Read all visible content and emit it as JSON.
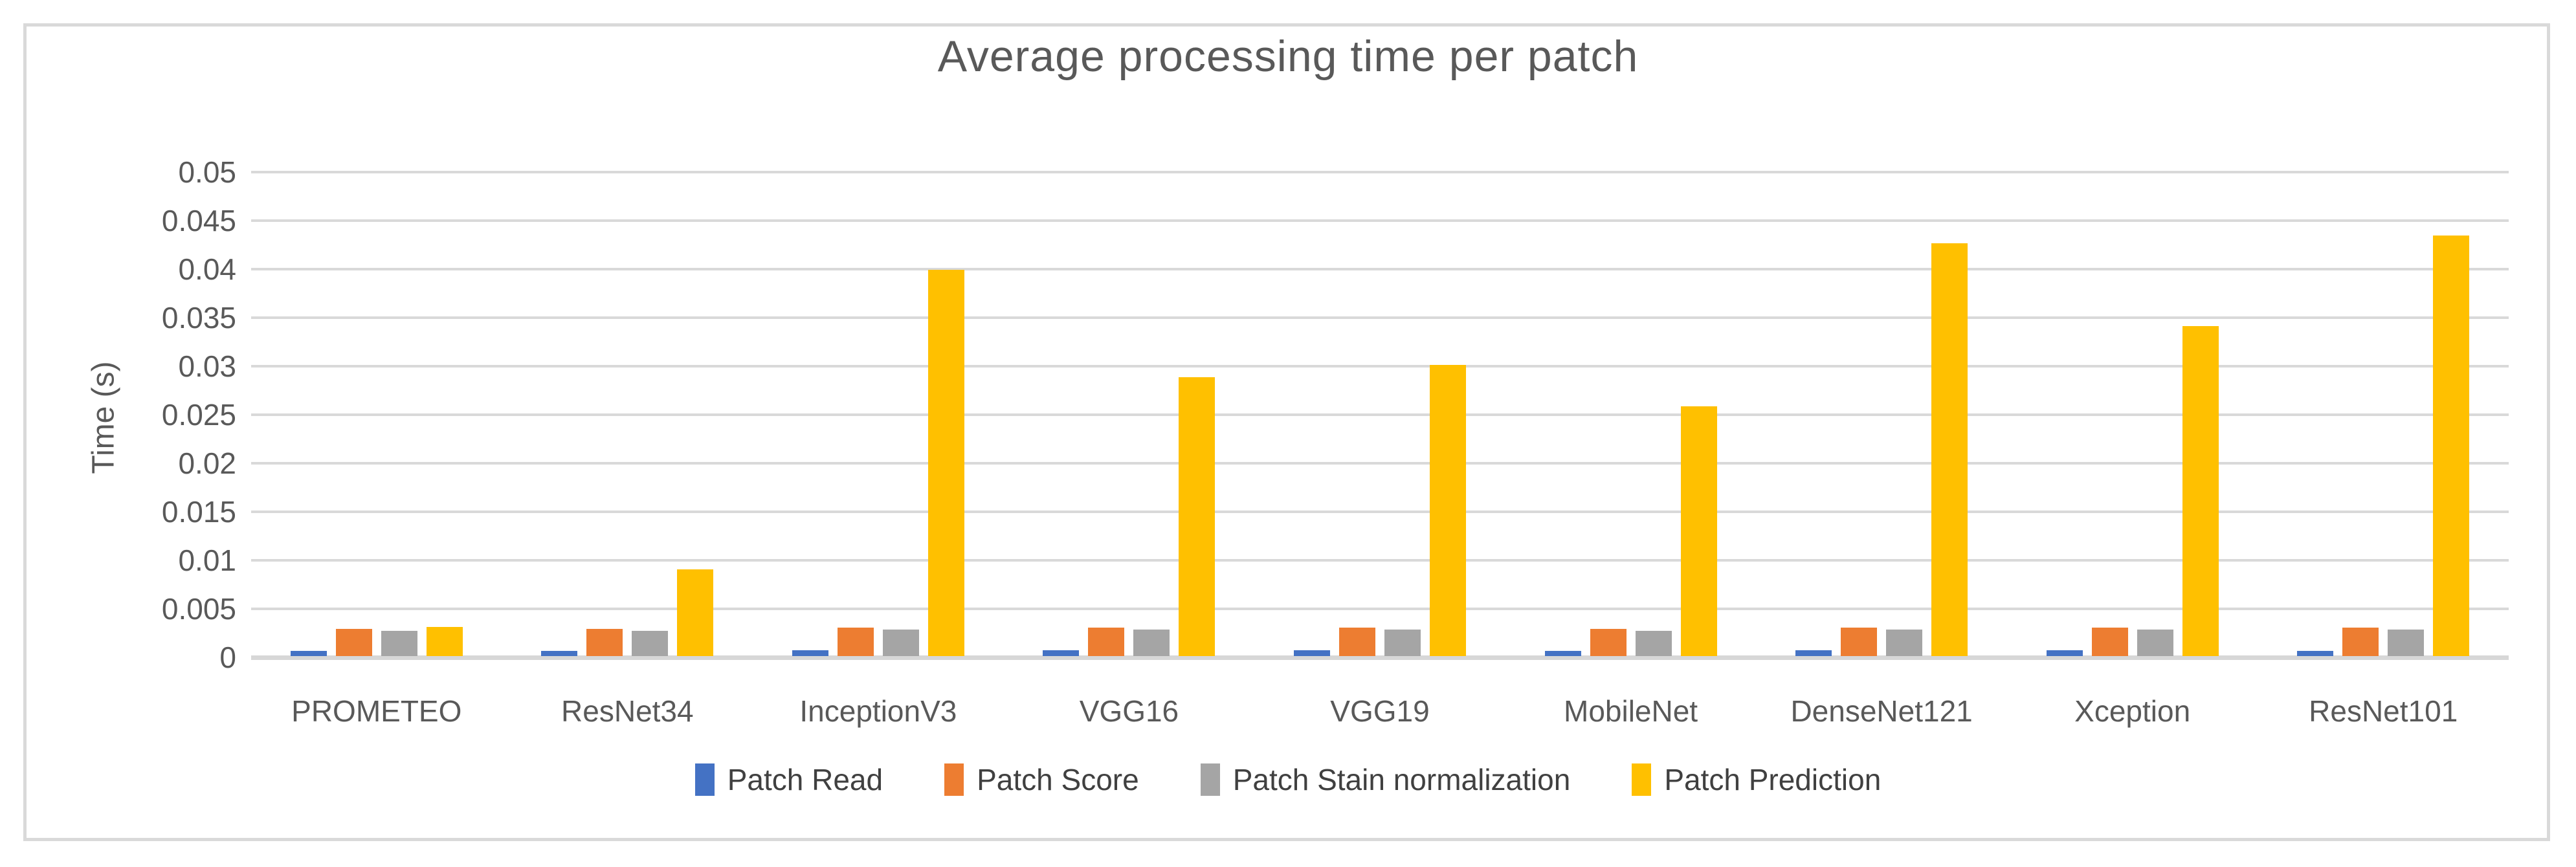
{
  "title": "Average processing time per patch",
  "colors": {
    "background": "#FFFFFF",
    "frame_border": "#D9D9D9",
    "gridline": "#D9D9D9",
    "axis_text": "#595959",
    "title_text": "#595959"
  },
  "chart_data": {
    "type": "bar",
    "title": "Average processing time per patch",
    "xlabel": "",
    "ylabel": "Time (s)",
    "ylim": [
      0,
      0.05
    ],
    "ytick_step": 0.005,
    "ytick_labels": [
      "0",
      "0.005",
      "0.01",
      "0.015",
      "0.02",
      "0.025",
      "0.03",
      "0.035",
      "0.04",
      "0.045",
      "0.05"
    ],
    "grid": true,
    "legend_position": "bottom",
    "categories": [
      "PROMETEO",
      "ResNet34",
      "InceptionV3",
      "VGG16",
      "VGG19",
      "MobileNet",
      "DenseNet121",
      "Xception",
      "ResNet101"
    ],
    "series": [
      {
        "name": "Patch Read",
        "color": "#4472C4",
        "values": [
          0.0005,
          0.0005,
          0.0006,
          0.0006,
          0.0006,
          0.0005,
          0.0006,
          0.0006,
          0.0005
        ]
      },
      {
        "name": "Patch Score",
        "color": "#ED7D31",
        "values": [
          0.0028,
          0.0028,
          0.0029,
          0.0029,
          0.0029,
          0.0028,
          0.0029,
          0.0029,
          0.0029
        ]
      },
      {
        "name": "Patch Stain normalization",
        "color": "#A5A5A5",
        "values": [
          0.0026,
          0.0026,
          0.0027,
          0.0027,
          0.0027,
          0.0026,
          0.0027,
          0.0027,
          0.0027
        ]
      },
      {
        "name": "Patch Prediction",
        "color": "#FFC000",
        "values": [
          0.003,
          0.0089,
          0.0398,
          0.0287,
          0.03,
          0.0257,
          0.0425,
          0.034,
          0.0433
        ]
      }
    ]
  }
}
